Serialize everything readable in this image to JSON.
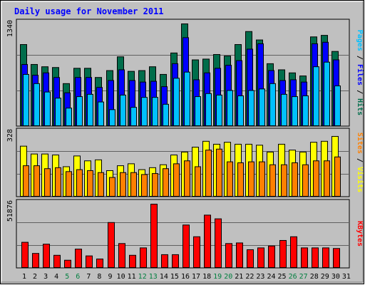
{
  "title": "Daily usage for November 2011",
  "colors": {
    "hits": "#006d4b",
    "files": "#0000ff",
    "pages": "#00c0ff",
    "visits": "#ffff00",
    "sites": "#ff8000",
    "kbytes": "#ff0000",
    "weekday": "#000000",
    "weekend": "#007f3f",
    "title": "#0000ff",
    "plot_bg": "#c0c0c0"
  },
  "right_labels": {
    "top": [
      {
        "text": "Pages",
        "color": "#00c0ff"
      },
      {
        "text": " / ",
        "color": "#000000"
      },
      {
        "text": "Files",
        "color": "#0000ff"
      },
      {
        "text": " / ",
        "color": "#000000"
      },
      {
        "text": "Hits",
        "color": "#006d4b"
      }
    ],
    "middle": [
      {
        "text": "Sites",
        "color": "#ff8000"
      },
      {
        "text": " / ",
        "color": "#000000"
      },
      {
        "text": "Visits",
        "color": "#ffff00"
      }
    ],
    "bottom": [
      {
        "text": "KBytes",
        "color": "#ff0000"
      }
    ]
  },
  "chart_data": [
    {
      "type": "bar",
      "panel": "top",
      "ymax_label": "1340",
      "ylim": [
        0,
        1340
      ],
      "categories": [
        "1",
        "2",
        "3",
        "4",
        "5",
        "6",
        "7",
        "8",
        "9",
        "10",
        "11",
        "12",
        "13",
        "14",
        "15",
        "16",
        "17",
        "18",
        "19",
        "20",
        "21",
        "22",
        "23",
        "24",
        "25",
        "26",
        "27",
        "28",
        "29",
        "30",
        "31"
      ],
      "weekend_days": [
        "5",
        "6",
        "12",
        "13",
        "19",
        "20",
        "26",
        "27"
      ],
      "series": [
        {
          "name": "Hits",
          "values": [
            1070,
            810,
            780,
            770,
            560,
            760,
            760,
            640,
            730,
            910,
            720,
            730,
            780,
            680,
            960,
            1340,
            870,
            880,
            940,
            920,
            1070,
            1240,
            1130,
            820,
            740,
            700,
            660,
            1170,
            1190,
            980,
            0
          ]
        },
        {
          "name": "Files",
          "values": [
            810,
            670,
            700,
            640,
            440,
            640,
            640,
            510,
            600,
            740,
            600,
            580,
            590,
            520,
            820,
            1160,
            610,
            700,
            760,
            800,
            860,
            1010,
            1080,
            730,
            600,
            610,
            580,
            1080,
            1100,
            870,
            0
          ]
        },
        {
          "name": "Pages",
          "values": [
            680,
            560,
            450,
            370,
            240,
            390,
            420,
            320,
            220,
            410,
            250,
            380,
            380,
            290,
            630,
            710,
            390,
            430,
            410,
            470,
            400,
            470,
            490,
            560,
            420,
            390,
            400,
            780,
            840,
            530,
            0
          ]
        }
      ]
    },
    {
      "type": "bar",
      "panel": "middle",
      "ymax_label": "328",
      "ylim": [
        0,
        328
      ],
      "categories": [
        "1",
        "2",
        "3",
        "4",
        "5",
        "6",
        "7",
        "8",
        "9",
        "10",
        "11",
        "12",
        "13",
        "14",
        "15",
        "16",
        "17",
        "18",
        "19",
        "20",
        "21",
        "22",
        "23",
        "24",
        "25",
        "26",
        "27",
        "28",
        "29",
        "30",
        "31"
      ],
      "series": [
        {
          "name": "Visits",
          "values": [
            260,
            220,
            220,
            215,
            155,
            210,
            185,
            190,
            135,
            160,
            170,
            140,
            150,
            165,
            215,
            230,
            255,
            285,
            270,
            280,
            270,
            270,
            265,
            230,
            270,
            240,
            230,
            280,
            285,
            310,
            0
          ]
        },
        {
          "name": "Sites",
          "values": [
            160,
            160,
            145,
            150,
            130,
            140,
            135,
            125,
            100,
            125,
            125,
            115,
            120,
            145,
            170,
            185,
            155,
            240,
            245,
            180,
            175,
            180,
            180,
            165,
            165,
            175,
            165,
            185,
            185,
            205,
            0
          ]
        }
      ]
    },
    {
      "type": "bar",
      "panel": "bottom",
      "ymax_label": "51876",
      "ylim": [
        0,
        51876
      ],
      "categories": [
        "1",
        "2",
        "3",
        "4",
        "5",
        "6",
        "7",
        "8",
        "9",
        "10",
        "11",
        "12",
        "13",
        "14",
        "15",
        "16",
        "17",
        "18",
        "19",
        "20",
        "21",
        "22",
        "23",
        "24",
        "25",
        "26",
        "27",
        "28",
        "29",
        "30",
        "31"
      ],
      "series": [
        {
          "name": "KBytes",
          "values": [
            21000,
            12000,
            19500,
            10500,
            6500,
            15500,
            10000,
            7500,
            37000,
            20000,
            10500,
            16500,
            51876,
            11000,
            11000,
            35000,
            25500,
            43000,
            40000,
            20000,
            20500,
            15000,
            16500,
            18000,
            22500,
            25500,
            16500,
            16500,
            16500,
            16000,
            0
          ]
        }
      ]
    }
  ]
}
